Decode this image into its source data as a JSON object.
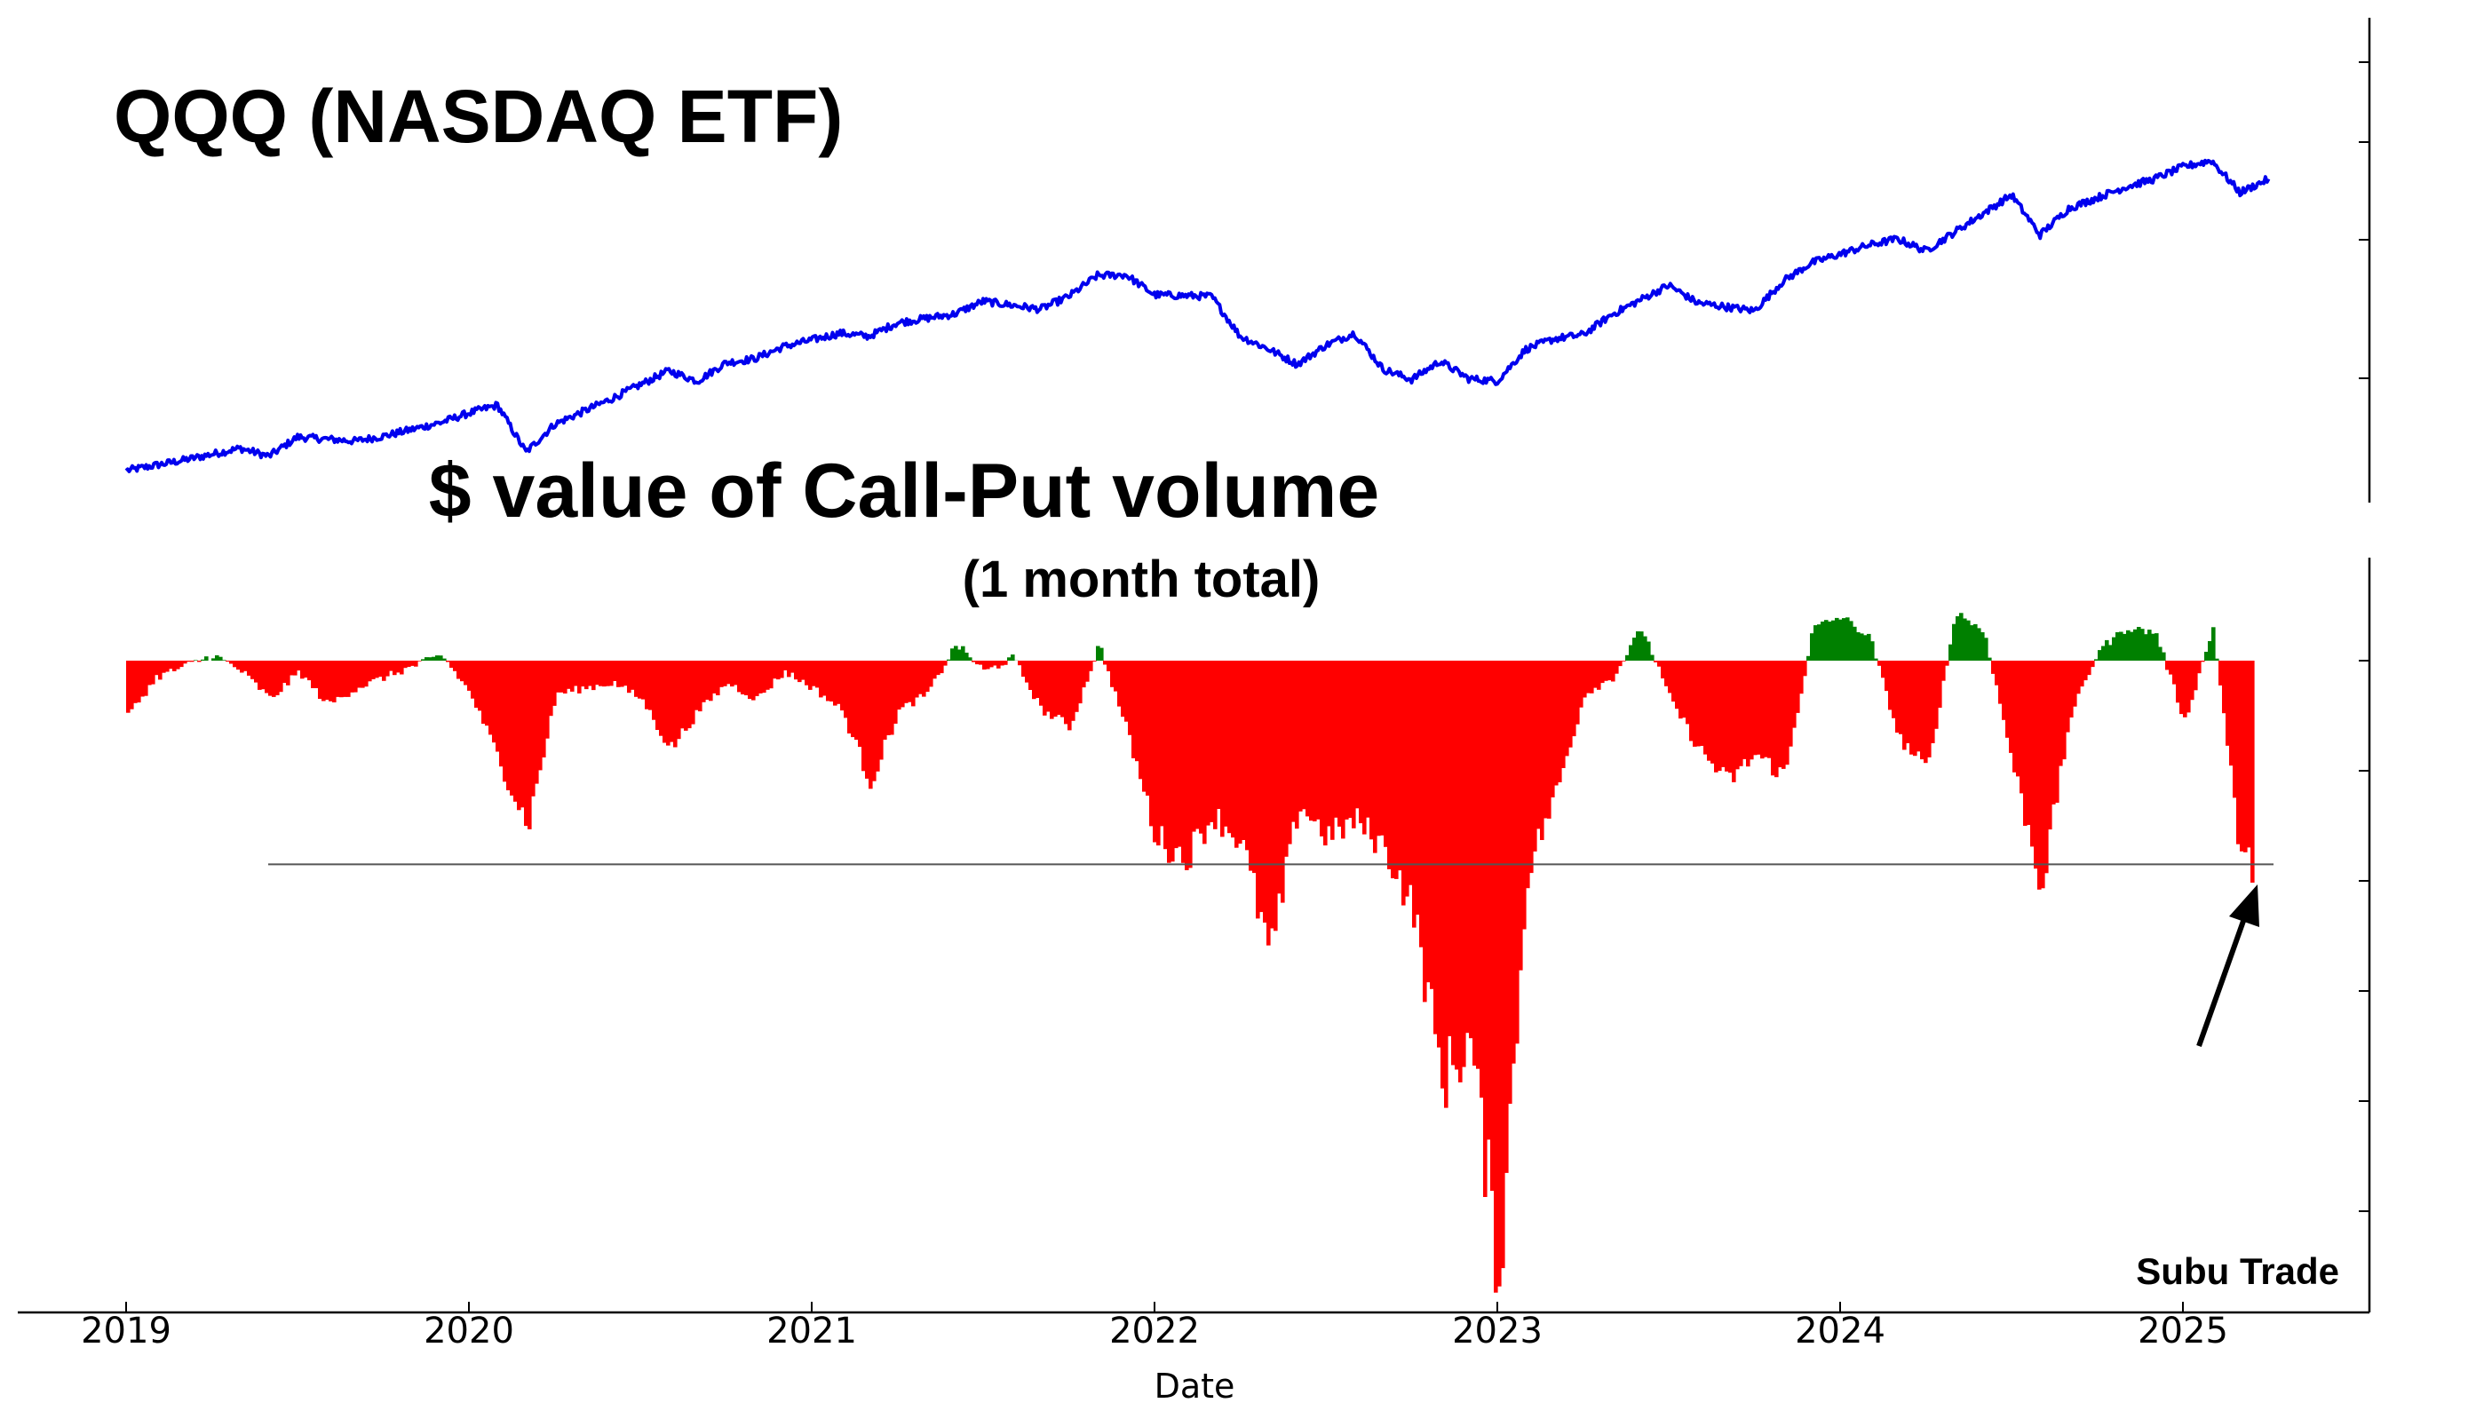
{
  "chart_data": [
    {
      "type": "line",
      "title": "QQQ (NASDAQ ETF)",
      "color": "#0000ee",
      "x": [
        "2019-01",
        "2019-03",
        "2019-05",
        "2019-06",
        "2019-07",
        "2019-09",
        "2019-10",
        "2019-12",
        "2020-01",
        "2020-02",
        "2020-03",
        "2020-04",
        "2020-06",
        "2020-08",
        "2020-09",
        "2020-10",
        "2020-11",
        "2020-12",
        "2021-02",
        "2021-03",
        "2021-04",
        "2021-06",
        "2021-07",
        "2021-09",
        "2021-10",
        "2021-11",
        "2021-12",
        "2022-01",
        "2022-03",
        "2022-04",
        "2022-05",
        "2022-06",
        "2022-07",
        "2022-08",
        "2022-09",
        "2022-10",
        "2022-11",
        "2022-12",
        "2023-01",
        "2023-02",
        "2023-03",
        "2023-04",
        "2023-05",
        "2023-07",
        "2023-08",
        "2023-10",
        "2023-11",
        "2023-12",
        "2024-02",
        "2024-03",
        "2024-04",
        "2024-07",
        "2024-08",
        "2024-09",
        "2024-11",
        "2024-12",
        "2025-01",
        "2025-02",
        "2025-03",
        "2025-04"
      ],
      "values": [
        150,
        163,
        178,
        168,
        192,
        187,
        193,
        210,
        222,
        232,
        173,
        208,
        240,
        275,
        262,
        285,
        290,
        305,
        322,
        318,
        335,
        346,
        362,
        352,
        368,
        394,
        395,
        370,
        368,
        318,
        302,
        283,
        307,
        322,
        277,
        264,
        287,
        265,
        262,
        302,
        315,
        320,
        345,
        382,
        360,
        350,
        387,
        410,
        432,
        440,
        425,
        495,
        445,
        478,
        505,
        515,
        530,
        538,
        498,
        515
      ]
    },
    {
      "type": "bar",
      "title": "$ value of Call-Put volume",
      "subtitle": "(1 month total)",
      "xlabel": "Date",
      "x_ticks": [
        "2019",
        "2020",
        "2021",
        "2022",
        "2023",
        "2024",
        "2025"
      ],
      "positive_color": "#008000",
      "negative_color": "#ff0000",
      "reference_level": -3.7,
      "annotation": "Subu Trade",
      "x": [
        "2019-01",
        "2019-02",
        "2019-04",
        "2019-05",
        "2019-06",
        "2019-07",
        "2019-08",
        "2019-09",
        "2019-10",
        "2019-12",
        "2020-01",
        "2020-02",
        "2020-03",
        "2020-04",
        "2020-05",
        "2020-06",
        "2020-07",
        "2020-08",
        "2020-09",
        "2020-10",
        "2020-11",
        "2020-12",
        "2021-01",
        "2021-02",
        "2021-03",
        "2021-04",
        "2021-05",
        "2021-06",
        "2021-07",
        "2021-08",
        "2021-09",
        "2021-10",
        "2021-11",
        "2021-12",
        "2022-01",
        "2022-02",
        "2022-03",
        "2022-04",
        "2022-05",
        "2022-06",
        "2022-07",
        "2022-08",
        "2022-09",
        "2022-10",
        "2022-11",
        "2022-12",
        "2023-01",
        "2023-02",
        "2023-03",
        "2023-04",
        "2023-05",
        "2023-06",
        "2023-07",
        "2023-08",
        "2023-09",
        "2023-10",
        "2023-11",
        "2023-12",
        "2024-01",
        "2024-02",
        "2024-03",
        "2024-04",
        "2024-05",
        "2024-06",
        "2024-07",
        "2024-08",
        "2024-09",
        "2024-10",
        "2024-11",
        "2024-12",
        "2025-01",
        "2025-02",
        "2025-03"
      ],
      "values": [
        -1.0,
        -0.3,
        0.1,
        -0.2,
        -0.7,
        -0.2,
        -0.8,
        -0.5,
        -0.3,
        0.1,
        -0.6,
        -1.8,
        -3.0,
        -0.6,
        -0.5,
        -0.4,
        -0.7,
        -1.6,
        -0.9,
        -0.4,
        -0.7,
        -0.2,
        -0.5,
        -0.9,
        -2.2,
        -0.9,
        -0.6,
        0.3,
        -0.2,
        0.05,
        -0.9,
        -1.2,
        0.3,
        -1.3,
        -3.2,
        -3.6,
        -2.8,
        -3.3,
        -5.4,
        -2.6,
        -3.2,
        -2.9,
        -3.4,
        -4.5,
        -7.6,
        -6.9,
        -11.1,
        -3.8,
        -2.4,
        -0.6,
        -0.3,
        0.6,
        -0.7,
        -1.6,
        -2.2,
        -1.7,
        -2.1,
        0.6,
        0.8,
        0.4,
        -1.4,
        -2.0,
        0.9,
        0.5,
        -1.9,
        -4.1,
        -1.0,
        0.2,
        0.6,
        0.5,
        -1.1,
        0.6,
        -3.7
      ]
    }
  ]
}
